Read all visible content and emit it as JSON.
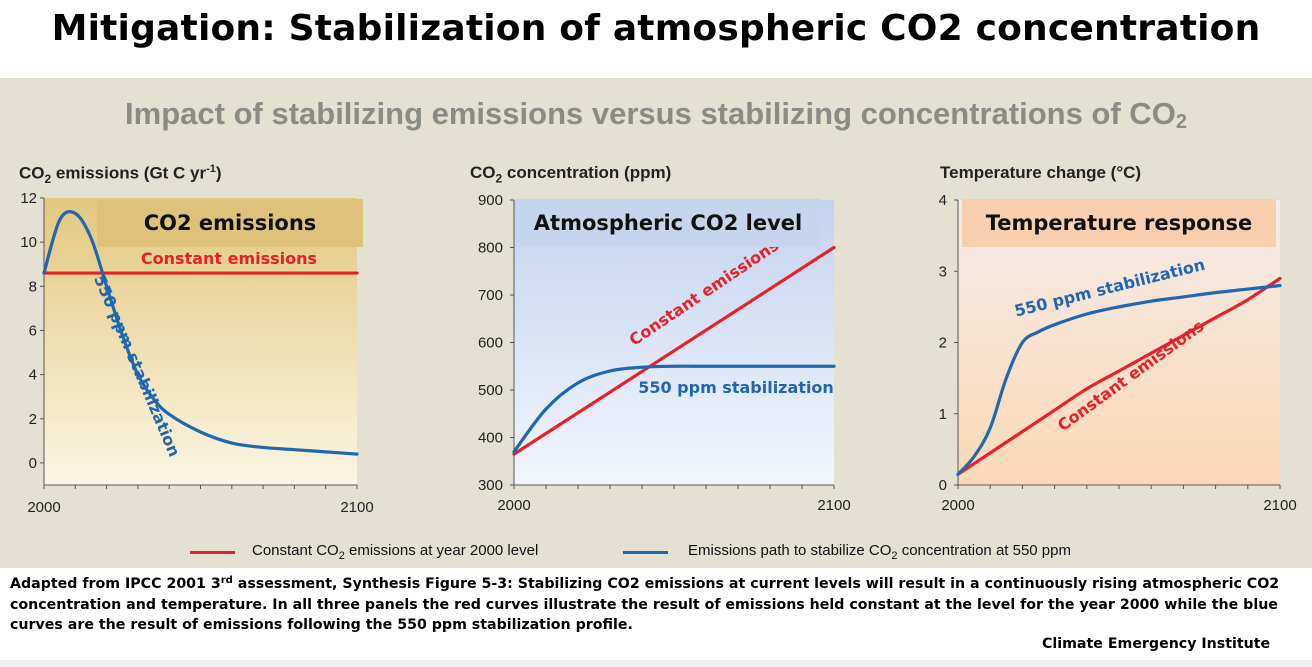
{
  "slide": {
    "title": "Mitigation: Stabilization of atmospheric CO2 concentration",
    "figure_title_main": "Impact of stabilizing emissions versus stabilizing concentrations of CO",
    "figure_title_sub": "2"
  },
  "legend": {
    "red_a": "Constant CO",
    "red_sub": "2",
    "red_b": " emissions at year 2000 level",
    "blue_a": "Emissions path to stabilize CO",
    "blue_sub": "2",
    "blue_b": " concentration at 550 ppm"
  },
  "caption": {
    "part1": "Adapted from IPCC 2001 3",
    "sup": "rd",
    "part2": " assessment, Synthesis Figure 5-3: Stabilizing CO2 emissions at current levels will result in a continuously rising atmospheric CO2 concentration and temperature. In all three panels the red curves illustrate the result of emissions held constant at the level for the year 2000  while the blue curves are the result of emissions following the 550 ppm stabilization profile.",
    "credit": "Climate Emergency Institute"
  },
  "colors": {
    "red": "#e8202a",
    "blue": "#1f67b0",
    "panel1_header": "#dec27a",
    "panel2_header": "#c5d5ee",
    "panel3_header": "#f8d0b0"
  },
  "chart_data": [
    {
      "type": "line",
      "header": "CO2 emissions",
      "ylabel_a": "CO",
      "ylabel_sub": "2",
      "ylabel_b": " emissions (Gt C yr",
      "ylabel_sup": "-1",
      "ylabel_c": ")",
      "xlim": [
        2000,
        2100
      ],
      "ylim": [
        -1,
        12
      ],
      "xticks": [
        "2000",
        "2100"
      ],
      "yticks": [
        0,
        2,
        4,
        6,
        8,
        10,
        12
      ],
      "yticks_text": [
        "0",
        "2",
        "4",
        "6",
        "8",
        "10",
        "12"
      ],
      "series": [
        {
          "name": "Constant emissions",
          "color": "red",
          "x": [
            2000,
            2100
          ],
          "y": [
            8.6,
            8.6
          ]
        },
        {
          "name": "550 ppm stabilization",
          "color": "blue",
          "x": [
            2000,
            2005,
            2010,
            2015,
            2020,
            2025,
            2030,
            2035,
            2040,
            2050,
            2060,
            2070,
            2080,
            2090,
            2100
          ],
          "y": [
            8.6,
            11.0,
            11.3,
            10.2,
            8.0,
            5.8,
            4.0,
            2.9,
            2.2,
            1.4,
            0.9,
            0.7,
            0.6,
            0.5,
            0.4
          ]
        }
      ]
    },
    {
      "type": "line",
      "header": "Atmospheric CO2 level",
      "ylabel_a": "CO",
      "ylabel_sub": "2",
      "ylabel_b": " concentration (ppm)",
      "ylabel_sup": "",
      "ylabel_c": "",
      "xlim": [
        2000,
        2100
      ],
      "ylim": [
        300,
        900
      ],
      "xticks": [
        "2000",
        "2100"
      ],
      "yticks": [
        300,
        400,
        500,
        600,
        700,
        800,
        900
      ],
      "yticks_text": [
        "300",
        "400",
        "500",
        "600",
        "700",
        "800",
        "900"
      ],
      "series": [
        {
          "name": "Constant emissions",
          "color": "red",
          "x": [
            2000,
            2100
          ],
          "y": [
            365,
            800
          ]
        },
        {
          "name": "550 ppm stabilization",
          "color": "blue",
          "x": [
            2000,
            2010,
            2020,
            2030,
            2040,
            2050,
            2060,
            2070,
            2080,
            2090,
            2100
          ],
          "y": [
            370,
            460,
            515,
            540,
            548,
            550,
            550,
            550,
            550,
            550,
            550
          ]
        }
      ]
    },
    {
      "type": "line",
      "header": "Temperature response",
      "ylabel_a": "Temperature change (°C)",
      "ylabel_sub": "",
      "ylabel_b": "",
      "ylabel_sup": "",
      "ylabel_c": "",
      "xlim": [
        2000,
        2100
      ],
      "ylim": [
        0,
        4
      ],
      "xticks": [
        "2000",
        "2100"
      ],
      "yticks": [
        0,
        1,
        2,
        3,
        4
      ],
      "yticks_text": [
        "0",
        "1",
        "2",
        "3",
        "4"
      ],
      "series": [
        {
          "name": "Constant emissions",
          "color": "red",
          "x": [
            2000,
            2010,
            2020,
            2030,
            2040,
            2050,
            2060,
            2070,
            2080,
            2090,
            2100
          ],
          "y": [
            0.15,
            0.45,
            0.75,
            1.05,
            1.35,
            1.6,
            1.85,
            2.1,
            2.35,
            2.6,
            2.9
          ]
        },
        {
          "name": "550 ppm stabilization",
          "color": "blue",
          "x": [
            2000,
            2005,
            2010,
            2015,
            2020,
            2025,
            2030,
            2040,
            2050,
            2060,
            2070,
            2080,
            2090,
            2100
          ],
          "y": [
            0.15,
            0.4,
            0.8,
            1.5,
            2.0,
            2.15,
            2.25,
            2.4,
            2.5,
            2.58,
            2.64,
            2.7,
            2.75,
            2.8
          ]
        }
      ]
    }
  ]
}
